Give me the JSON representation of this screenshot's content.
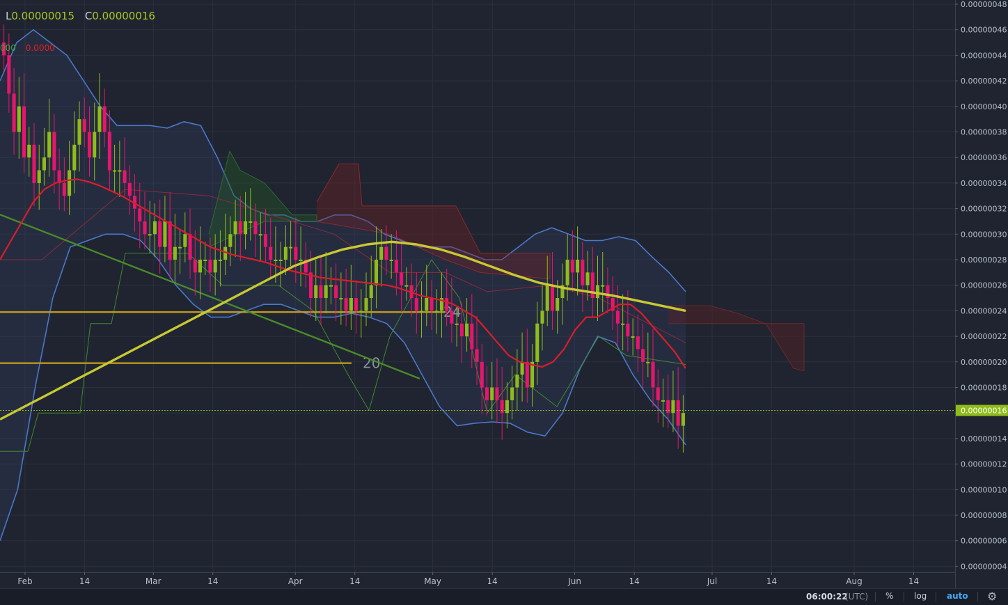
{
  "legend": {
    "low_label": "L",
    "low_value": "0.00000015",
    "close_label": "C",
    "close_value": "0.00000016"
  },
  "indicators": {
    "green_value": "000",
    "red_value": "0.0000"
  },
  "footer": {
    "time": "06:00:22",
    "timezone": "(UTC)",
    "percent_button": "%",
    "log_button": "log",
    "auto_button": "auto",
    "settings_icon": "gear-icon"
  },
  "chart_data": {
    "type": "candlestick",
    "x_range": [
      "2018-01-27",
      "2018-08-24"
    ],
    "y_range": [
      3.5e-08,
      4.8e-08
    ],
    "y_ticks": [
      "0.00000048",
      "0.00000046",
      "0.00000044",
      "0.00000042",
      "0.00000040",
      "0.00000038",
      "0.00000036",
      "0.00000034",
      "0.00000032",
      "0.00000030",
      "0.00000028",
      "0.00000026",
      "0.00000024",
      "0.00000022",
      "0.00000020",
      "0.00000018",
      "0.00000016",
      "0.00000014",
      "0.00000012",
      "0.00000010",
      "0.00000008",
      "0.00000006",
      "0.00000004"
    ],
    "y_tick_values": [
      48,
      46,
      44,
      42,
      40,
      38,
      36,
      34,
      32,
      30,
      28,
      26,
      24,
      22,
      20,
      18,
      16,
      14,
      12,
      10,
      8,
      6,
      4
    ],
    "y_unit_scale": 1e-08,
    "x_ticks": [
      {
        "label": "Feb",
        "date": "2018-02-01"
      },
      {
        "label": "14",
        "date": "2018-02-14"
      },
      {
        "label": "Mar",
        "date": "2018-03-01"
      },
      {
        "label": "14",
        "date": "2018-03-14"
      },
      {
        "label": "Apr",
        "date": "2018-04-01"
      },
      {
        "label": "14",
        "date": "2018-04-14"
      },
      {
        "label": "May",
        "date": "2018-05-01"
      },
      {
        "label": "14",
        "date": "2018-05-14"
      },
      {
        "label": "Jun",
        "date": "2018-06-01"
      },
      {
        "label": "14",
        "date": "2018-06-14"
      },
      {
        "label": "Jul",
        "date": "2018-07-01"
      },
      {
        "label": "14",
        "date": "2018-07-14"
      },
      {
        "label": "Aug",
        "date": "2018-08-01"
      },
      {
        "label": "14",
        "date": "2018-08-14"
      }
    ],
    "last_price_label": "0.00000016",
    "last_price_value": 16.2,
    "closes": [
      44,
      41,
      38,
      40,
      36,
      37,
      34,
      35,
      36,
      38,
      35,
      34,
      33,
      35,
      37,
      39,
      38,
      36,
      38,
      40,
      38,
      35,
      35,
      35,
      34,
      33,
      32,
      31,
      30,
      30,
      31,
      29,
      31,
      28,
      29,
      29,
      30,
      28,
      27,
      28,
      28,
      27,
      28,
      28,
      29,
      30,
      31,
      30,
      31,
      31,
      30,
      30,
      29,
      28,
      28,
      28,
      29,
      29,
      28,
      28,
      27,
      25,
      26,
      25,
      26,
      26,
      25,
      25,
      24,
      25,
      24,
      24,
      25,
      26,
      28,
      29,
      28,
      28,
      27,
      26,
      26,
      25,
      24,
      24,
      25,
      24,
      24,
      25,
      24,
      23,
      23,
      22,
      23,
      21,
      20,
      18,
      17,
      18,
      17,
      16,
      17,
      18,
      19,
      20,
      18,
      20,
      23,
      24,
      26,
      24,
      25,
      26,
      28,
      27,
      28,
      26,
      27,
      25,
      26,
      26,
      25,
      24,
      23,
      23,
      22,
      22,
      21,
      20,
      20,
      18,
      17,
      17,
      16,
      17,
      15,
      16
    ],
    "moving_average_red": [
      28,
      29.5,
      31,
      32.5,
      33.5,
      34,
      34.2,
      34.3,
      34.1,
      33.8,
      33.4,
      33,
      32.5,
      32,
      31.5,
      31,
      30.5,
      30,
      29.5,
      29,
      28.7,
      28.4,
      28.2,
      28,
      27.8,
      27.5,
      27.2,
      27,
      26.8,
      26.6,
      26.5,
      26.4,
      26.3,
      26.2,
      26.1,
      26,
      25.8,
      25.5,
      25.2,
      25,
      24.8,
      24.5,
      24,
      23.5,
      22.5,
      21.5,
      20.5,
      20,
      19.8,
      19.6,
      20,
      21,
      22.5,
      23.5,
      23.5,
      24,
      24.5,
      24.5,
      23.8,
      22.8,
      21.8,
      20.8,
      19.5
    ],
    "moving_average_yellow": [
      15.5,
      16.5,
      17.5,
      18.5,
      19.5,
      20.5,
      21.5,
      22.5,
      23.5,
      24.5,
      25.5,
      26.5,
      27.5,
      28.2,
      28.8,
      29.2,
      29.4,
      29.2,
      28.8,
      28.2,
      27.5,
      26.8,
      26.2,
      25.8,
      25.5,
      25.2,
      24.8,
      24.4,
      24
    ],
    "bollinger_upper": [
      42,
      45,
      46,
      45,
      44,
      42,
      40,
      38.5,
      38.5,
      38.5,
      38.3,
      38.8,
      38.5,
      36,
      33,
      32,
      31.5,
      31.5,
      31,
      31,
      31.5,
      31.5,
      31,
      30,
      29.5,
      29,
      29,
      29,
      28.5,
      28,
      28,
      29,
      30,
      30.5,
      30,
      29.5,
      29.5,
      29.8,
      29.5,
      28.2,
      27,
      25.5
    ],
    "bollinger_lower": [
      6,
      10,
      18,
      25,
      29,
      29.5,
      30,
      30,
      29.5,
      28,
      26,
      24.5,
      23.5,
      23.5,
      24,
      24.5,
      24.5,
      24,
      23.5,
      23.5,
      23.8,
      23.5,
      23,
      21.5,
      19,
      16.5,
      15,
      15.2,
      15.3,
      15.2,
      14.5,
      14.2,
      16,
      19.5,
      22,
      21.5,
      19,
      17,
      15.5,
      13.5
    ],
    "trendline_green": [
      [
        -5,
        31.8
      ],
      [
        180,
        18.8
      ]
    ],
    "horizontal_lines": [
      {
        "value": 23.9,
        "label": "24"
      },
      {
        "value": 19.9,
        "label": "20"
      }
    ]
  }
}
